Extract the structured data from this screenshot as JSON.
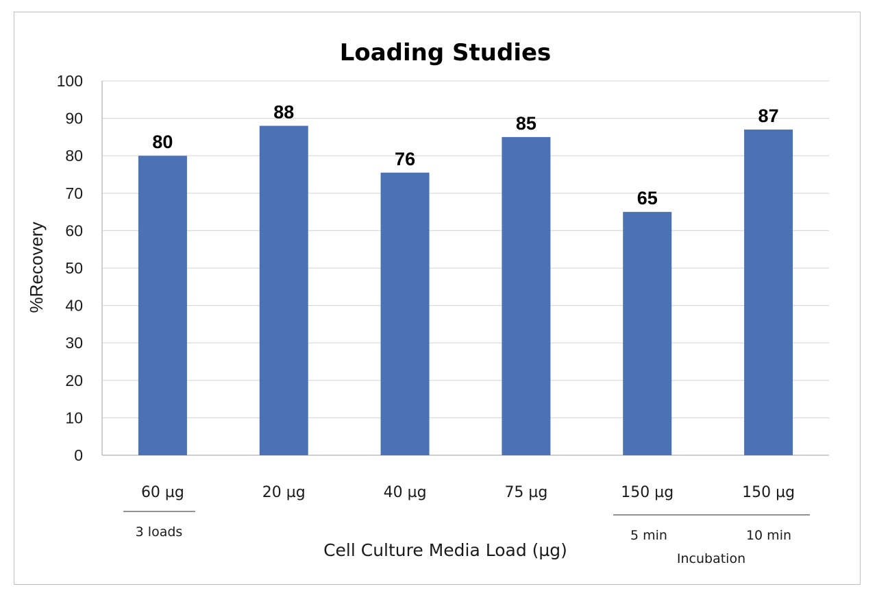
{
  "chart_data": {
    "type": "bar",
    "title": "Loading Studies",
    "xlabel": "Cell Culture Media Load (µg)",
    "ylabel": "%Recovery",
    "ylim": [
      0,
      100
    ],
    "y_ticks": [
      "0",
      "10",
      "20",
      "30",
      "40",
      "50",
      "60",
      "70",
      "80",
      "90",
      "100"
    ],
    "grid": true,
    "bar_color": "#4a72b5",
    "categories": [
      "60 µg",
      "20 µg",
      "40 µg",
      "75 µg",
      "150 µg",
      "150 µg"
    ],
    "values": [
      80,
      88,
      75.5,
      85,
      65,
      87
    ],
    "data_labels": [
      "80",
      "88",
      "76",
      "85",
      "65",
      "87"
    ],
    "group_annotations": [
      {
        "sub_labels": [
          "3 loads"
        ],
        "group_label": ""
      },
      {
        "sub_labels": [
          "5 min",
          "10 min"
        ],
        "group_label": "Incubation"
      }
    ]
  }
}
